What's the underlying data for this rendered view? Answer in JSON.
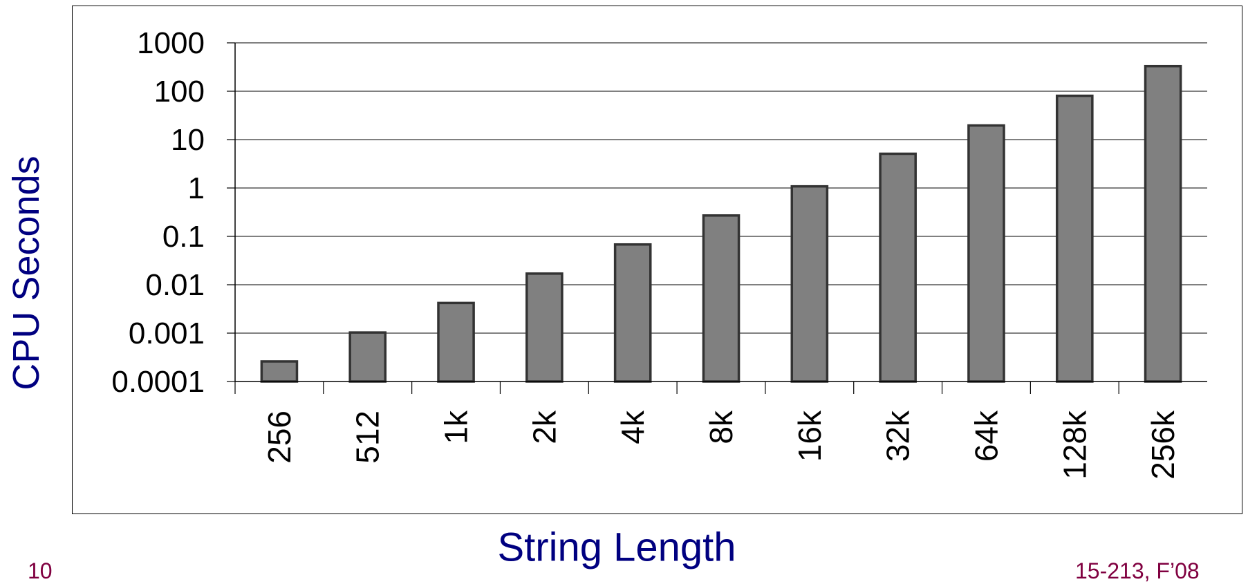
{
  "chart_data": {
    "type": "bar",
    "xlabel": "String Length",
    "ylabel": "CPU Seconds",
    "yscale": "log",
    "ylim": [
      0.0001,
      1000
    ],
    "yticks": [
      "0.0001",
      "0.001",
      "0.01",
      "0.1",
      "1",
      "10",
      "100",
      "1000"
    ],
    "categories": [
      "256",
      "512",
      "1k",
      "2k",
      "4k",
      "8k",
      "16k",
      "32k",
      "64k",
      "128k",
      "256k"
    ],
    "values": [
      0.00026,
      0.00103,
      0.0042,
      0.017,
      0.068,
      0.27,
      1.08,
      5.1,
      19.6,
      80.5,
      330
    ],
    "grid": true,
    "colors": {
      "bar": "#808080",
      "bar_edge": "#333333",
      "label": "#000080",
      "footer": "#800040"
    }
  },
  "footer": {
    "slide_number": "10",
    "course": "15-213, F’08"
  }
}
